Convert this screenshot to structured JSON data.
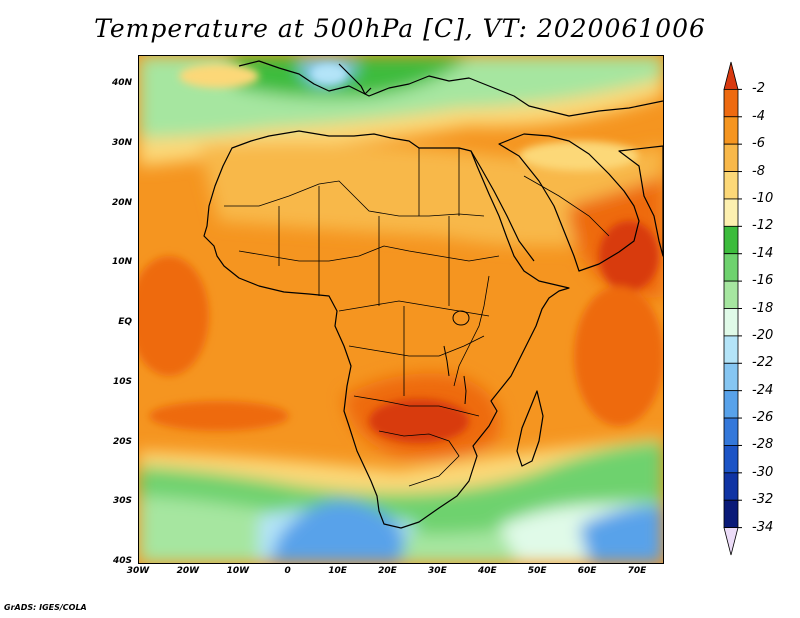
{
  "title": "Temperature at 500hPa [C], VT: 2020061006",
  "footer": "GrADS: IGES/COLA",
  "map": {
    "projection": "lat-lon",
    "lat_range": [
      -40,
      45
    ],
    "lon_range": [
      -30,
      75
    ],
    "lat_ticks": [
      "40N",
      "30N",
      "20N",
      "10N",
      "EQ",
      "10S",
      "20S",
      "30S",
      "40S"
    ],
    "lon_ticks": [
      "30W",
      "20W",
      "10W",
      "0",
      "10E",
      "20E",
      "30E",
      "40E",
      "50E",
      "60E",
      "70E"
    ]
  },
  "colorbar": {
    "labels": [
      "-2",
      "-4",
      "-6",
      "-8",
      "-10",
      "-12",
      "-14",
      "-16",
      "-18",
      "-20",
      "-22",
      "-24",
      "-26",
      "-28",
      "-30",
      "-32",
      "-34"
    ],
    "colors": [
      "#d83a10",
      "#ee6a10",
      "#f59520",
      "#f8b84a",
      "#fcd878",
      "#fdf0b0",
      "#3cbc3c",
      "#6ed26e",
      "#a6e6a0",
      "#e0fae8",
      "#b4e4f8",
      "#86c6f2",
      "#58a2ea",
      "#3478da",
      "#1c54c6",
      "#1034a4",
      "#0a1a78",
      "#ecdcf8"
    ]
  }
}
